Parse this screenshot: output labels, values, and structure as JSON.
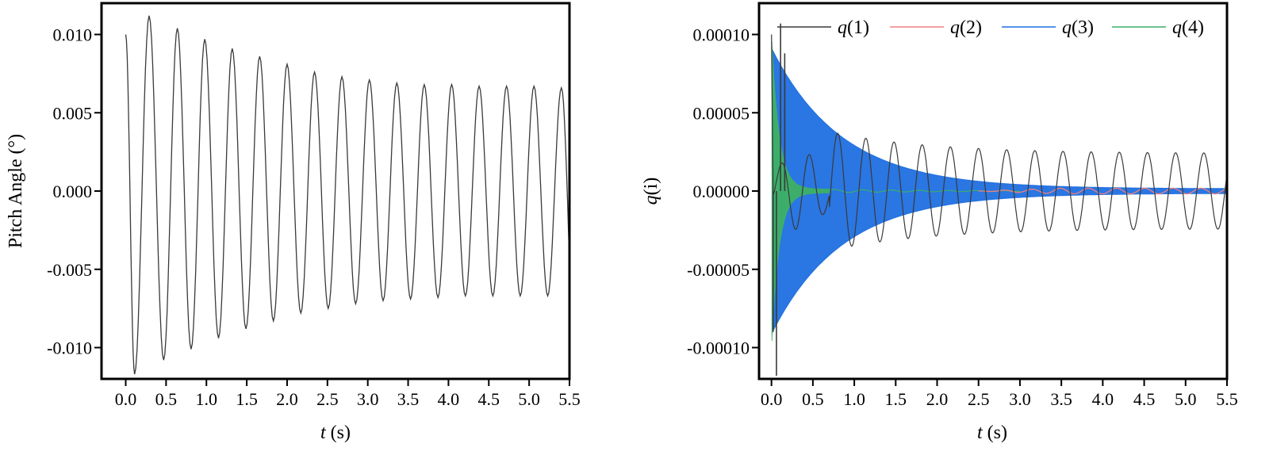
{
  "chart_data": [
    {
      "type": "line",
      "id": "left",
      "title": "",
      "xlabel": "t (s)",
      "ylabel": "Pitch Angle (°)",
      "xlim": [
        -0.3,
        5.5
      ],
      "ylim": [
        -0.012,
        0.012
      ],
      "x_ticks": [
        0.0,
        0.5,
        1.0,
        1.5,
        2.0,
        2.5,
        3.0,
        3.5,
        4.0,
        4.5,
        5.0,
        5.5
      ],
      "x_tick_labels": [
        "0.0",
        "0.5",
        "1.0",
        "1.5",
        "2.0",
        "2.5",
        "3.0",
        "3.5",
        "4.0",
        "4.5",
        "5.0",
        "5.5"
      ],
      "y_ticks": [
        -0.01,
        -0.005,
        0.0,
        0.005,
        0.01
      ],
      "y_tick_labels": [
        "-0.010",
        "-0.005",
        "0.000",
        "0.005",
        "0.010"
      ],
      "grid": false,
      "legend": "none",
      "series": [
        {
          "color": "#3a3a3a",
          "description": "damped oscillation starting at 0.010, period ~0.34 s",
          "extrema_x": [
            0.0,
            0.11,
            0.29,
            0.47,
            0.64,
            0.81,
            0.98,
            1.15,
            1.32,
            1.49,
            1.66,
            1.83,
            2.0,
            2.17,
            2.34,
            2.51,
            2.68,
            2.85,
            3.02,
            3.19,
            3.36,
            3.53,
            3.7,
            3.87,
            4.04,
            4.21,
            4.38,
            4.55,
            4.72,
            4.89,
            5.06,
            5.23,
            5.4
          ],
          "extrema_y": [
            0.01,
            -0.0117,
            0.0112,
            -0.0108,
            0.0104,
            -0.0101,
            0.0097,
            -0.0094,
            0.0091,
            -0.0088,
            0.0086,
            -0.0083,
            0.0081,
            -0.0078,
            0.0076,
            -0.0075,
            0.0073,
            -0.0072,
            0.0071,
            -0.007,
            0.0069,
            -0.0069,
            0.0068,
            -0.0068,
            0.0068,
            -0.0067,
            0.0067,
            -0.0067,
            0.0067,
            -0.0067,
            0.0067,
            -0.0067,
            0.0066
          ],
          "end_value": -0.0045
        }
      ]
    },
    {
      "type": "line",
      "id": "right",
      "title": "",
      "xlabel": "t (s)",
      "ylabel": "q(i)",
      "xlim": [
        -0.15,
        5.5
      ],
      "ylim": [
        -0.00012,
        0.00012
      ],
      "x_ticks": [
        0.0,
        0.5,
        1.0,
        1.5,
        2.0,
        2.5,
        3.0,
        3.5,
        4.0,
        4.5,
        5.0,
        5.5
      ],
      "x_tick_labels": [
        "0.0",
        "0.5",
        "1.0",
        "1.5",
        "2.0",
        "2.5",
        "3.0",
        "3.5",
        "4.0",
        "4.5",
        "5.0",
        "5.5"
      ],
      "y_ticks": [
        -0.0001,
        -5e-05,
        0.0,
        5e-05,
        0.0001
      ],
      "y_tick_labels": [
        "-0.00010",
        "-0.00005",
        "0.00000",
        "0.00005",
        "0.00010"
      ],
      "grid": false,
      "legend": "top-right",
      "series": [
        {
          "name": "q(1)",
          "color": "#3a3a3a",
          "start": 0.0001,
          "amp_initial": 0.000105,
          "amp_final": 2.4e-05,
          "tau": 1.2,
          "period": 0.18,
          "peak": 0.000107,
          "trough": -0.000118
        },
        {
          "name": "q(2)",
          "color": "#f08080",
          "amp_final": 1.8e-06,
          "period": 0.34
        },
        {
          "name": "q(3)",
          "color": "#1f6fe0",
          "amp_initial": 9e-05,
          "tau": 0.85
        },
        {
          "name": "q(4)",
          "color": "#3cae6a",
          "amp_initial": 0.0001,
          "tau": 0.09,
          "residual_amp": 1.2e-06
        }
      ]
    }
  ]
}
